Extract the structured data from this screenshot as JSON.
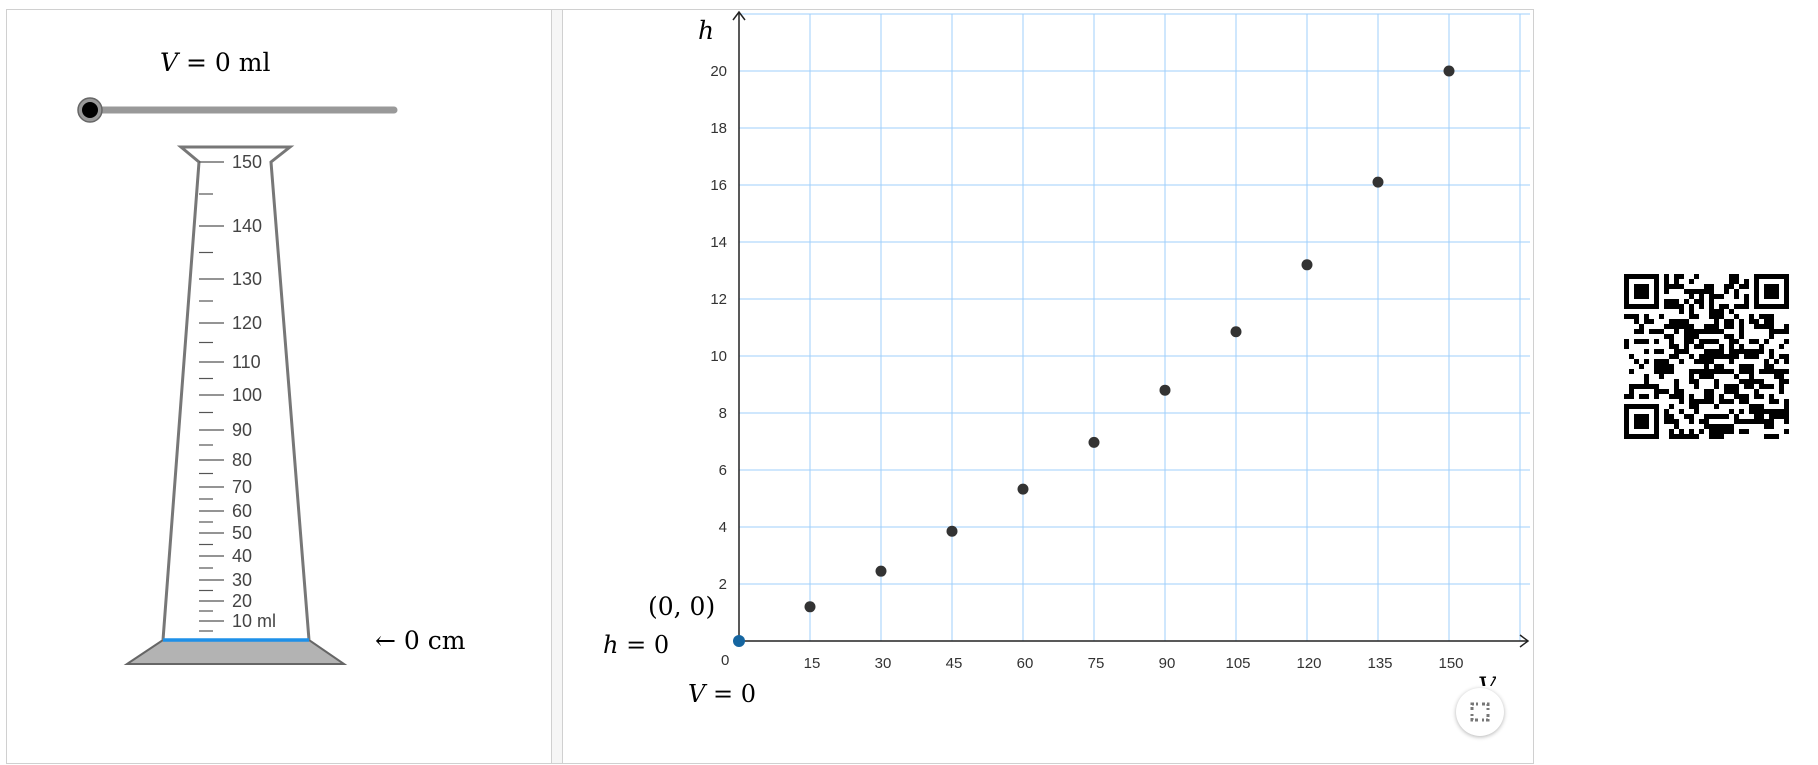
{
  "left_panel": {
    "volume_label": "V = 0 ml",
    "volume_var": "V",
    "volume_rest": " = 0 ml",
    "slider": {
      "value": 0,
      "min": 0,
      "max": 150
    },
    "cylinder": {
      "major_labels": [
        "150",
        "140",
        "130",
        "120",
        "110",
        "100",
        "90",
        "80",
        "70",
        "60",
        "50",
        "40",
        "30",
        "20",
        "10 ml"
      ],
      "fill_level": 0
    },
    "height_readout": "← 0 cm",
    "colors": {
      "water": "#1e90e8",
      "base": "#b3b3b3",
      "outline": "#777777"
    }
  },
  "graph": {
    "y_axis_label": "h",
    "x_axis_label": "V",
    "origin_label": "(0,  0)",
    "h_readout": "= 0",
    "v_readout": "= 0",
    "origin_tick": "0",
    "colors": {
      "grid": "#9fcffb",
      "point": "#333333",
      "origin_point": "#1565a0"
    },
    "fullscreen_icon": "expand-icon"
  },
  "chart_data": {
    "type": "scatter",
    "xlabel": "V",
    "ylabel": "h",
    "xlim": [
      0,
      165
    ],
    "ylim": [
      0,
      22
    ],
    "x_ticks": [
      15,
      30,
      45,
      60,
      75,
      90,
      105,
      120,
      135,
      150
    ],
    "y_ticks": [
      2,
      4,
      6,
      8,
      10,
      12,
      14,
      16,
      18,
      20
    ],
    "grid": true,
    "x": [
      15,
      30,
      45,
      60,
      75,
      90,
      105,
      120,
      135,
      150
    ],
    "y": [
      1.2,
      2.45,
      3.85,
      5.33,
      6.97,
      8.8,
      10.85,
      13.2,
      16.1,
      20
    ],
    "current_point": [
      0,
      0
    ]
  },
  "qr_code": {
    "icon": "qr-code"
  }
}
